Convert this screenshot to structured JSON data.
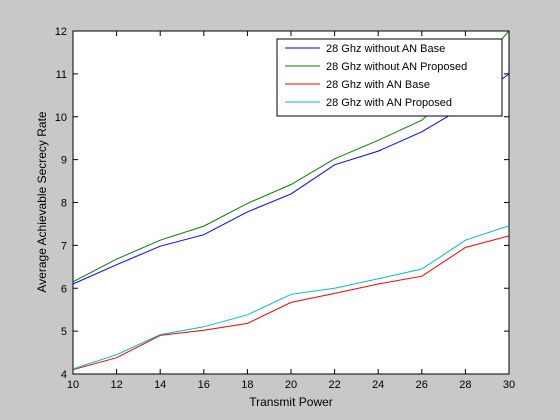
{
  "chart_data": {
    "type": "line",
    "title": "",
    "xlabel": "Transmit Power",
    "ylabel": "Average Achievable Secrecy Rate",
    "xlim": [
      10,
      30
    ],
    "ylim": [
      4,
      12
    ],
    "x_ticks": [
      10,
      12,
      14,
      16,
      18,
      20,
      22,
      24,
      26,
      28,
      30
    ],
    "y_ticks": [
      4,
      5,
      6,
      7,
      8,
      9,
      10,
      11,
      12
    ],
    "grid": false,
    "legend_position": "top-right",
    "x": [
      10,
      12,
      14,
      16,
      18,
      20,
      22,
      24,
      26,
      28,
      30
    ],
    "series": [
      {
        "name": "28 Ghz without AN Base",
        "color": "#0000ff",
        "values": [
          6.1,
          6.55,
          6.98,
          7.25,
          7.78,
          8.2,
          8.88,
          9.2,
          9.65,
          10.25,
          11.0
        ]
      },
      {
        "name": "28 Ghz without AN Proposed",
        "color": "#008000",
        "values": [
          6.15,
          6.68,
          7.12,
          7.45,
          7.98,
          8.42,
          9.02,
          9.45,
          9.92,
          10.85,
          12.0
        ]
      },
      {
        "name": "28 Ghz with AN Base",
        "color": "#ff0000",
        "values": [
          4.1,
          4.38,
          4.9,
          5.02,
          5.18,
          5.67,
          5.88,
          6.1,
          6.28,
          6.95,
          7.22
        ]
      },
      {
        "name": "28 Ghz with AN Proposed",
        "color": "#00bfbf",
        "values": [
          4.12,
          4.45,
          4.92,
          5.1,
          5.38,
          5.86,
          6.0,
          6.22,
          6.45,
          7.12,
          7.46
        ]
      }
    ]
  }
}
